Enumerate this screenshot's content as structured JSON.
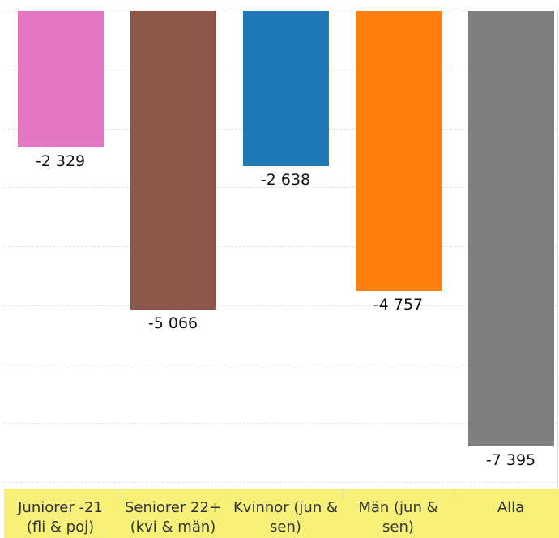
{
  "chart_data": {
    "type": "bar",
    "categories": [
      "Juniorer -21\n(fli & poj)",
      "Seniorer 22+\n(kvi & män)",
      "Kvinnor (jun &\nsen)",
      "Män (jun &\nsen)",
      "Alla"
    ],
    "values": [
      -2329,
      -5066,
      -2638,
      -4757,
      -7395
    ],
    "value_labels": [
      "-2 329",
      "-5 066",
      "-2 638",
      "-4 757",
      "-7 395"
    ],
    "colors": [
      "#e377c2",
      "#8c564b",
      "#1f77b4",
      "#ff7f0e",
      "#7f7f7f"
    ],
    "ylim": [
      -8000,
      0
    ],
    "yticks": [
      -8000,
      -7000,
      -6000,
      -5000,
      -4000,
      -3000,
      -2000,
      -1000,
      0
    ],
    "grid": true
  }
}
